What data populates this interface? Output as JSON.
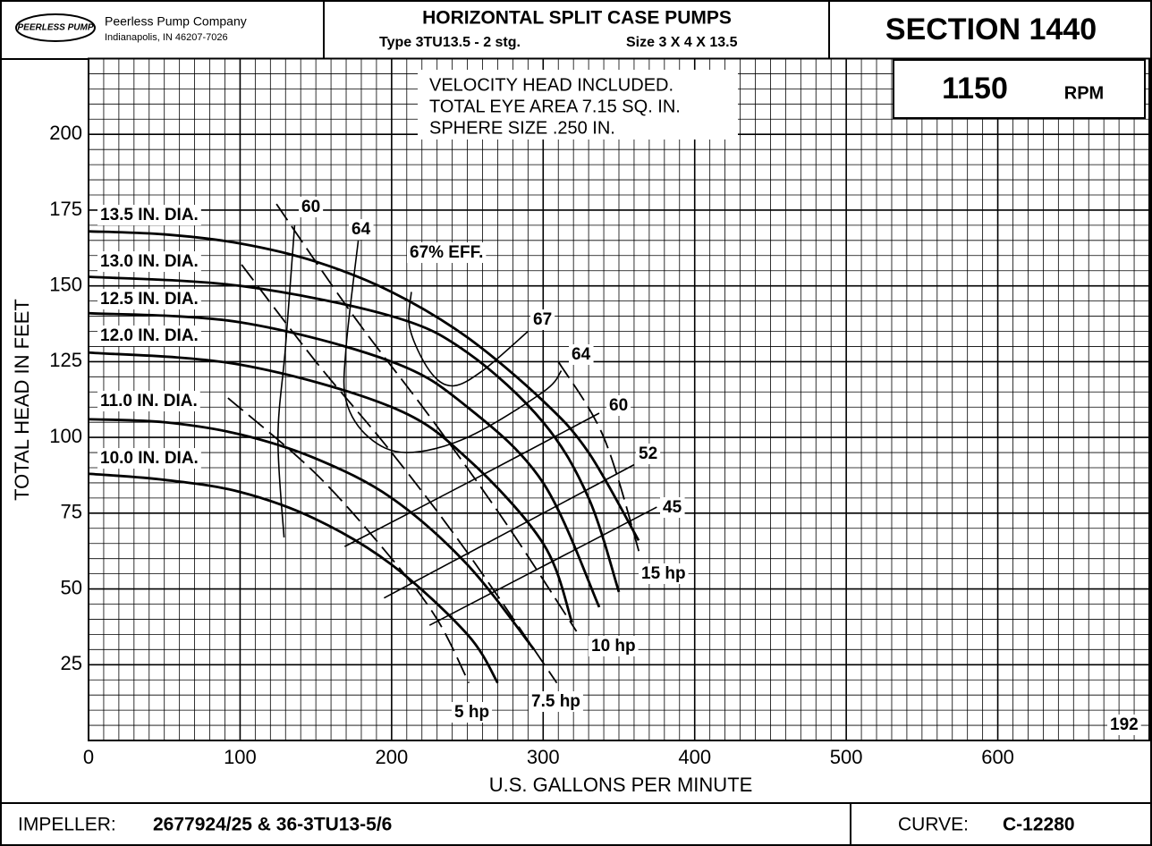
{
  "header": {
    "logo": "PEERLESS PUMP",
    "company": "Peerless Pump Company",
    "address": "Indianapolis, IN 46207-7026",
    "title": "HORIZONTAL SPLIT CASE PUMPS",
    "type": "Type  3TU13.5 - 2 stg.",
    "size": "Size  3 X 4 X 13.5",
    "section": "SECTION 1440",
    "rpm_value": "1150",
    "rpm_unit": "RPM"
  },
  "footer": {
    "impeller_label": "IMPELLER:",
    "impeller": "2677924/25 & 36-3TU13-5/6",
    "curve_label": "CURVE:",
    "curve": "C-12280"
  },
  "chart_data": {
    "type": "line",
    "xlabel": "U.S. GALLONS PER MINUTE",
    "ylabel": "TOTAL HEAD IN FEET",
    "notes": [
      "VELOCITY HEAD INCLUDED.",
      "TOTAL EYE AREA 7.15 SQ. IN.",
      "SPHERE SIZE .250 IN."
    ],
    "xlim": [
      0,
      700
    ],
    "ylim": [
      0,
      225
    ],
    "xticks": [
      0,
      100,
      200,
      300,
      400,
      500,
      600
    ],
    "yticks": [
      25,
      50,
      75,
      100,
      125,
      150,
      175,
      200
    ],
    "grid": true,
    "minor_grid_step": [
      10,
      5
    ],
    "series": [
      {
        "name": "13.5 IN. DIA.",
        "color": "#000",
        "line_width": 2.8,
        "x": [
          0,
          50,
          100,
          150,
          200,
          250,
          300,
          330,
          363
        ],
        "values": [
          168,
          167,
          164,
          158,
          148,
          133,
          112,
          95,
          66
        ]
      },
      {
        "name": "13.0 IN. DIA.",
        "color": "#000",
        "line_width": 2.8,
        "x": [
          0,
          100,
          200,
          250,
          300,
          330,
          350
        ],
        "values": [
          153,
          150,
          140,
          128,
          105,
          80,
          49
        ]
      },
      {
        "name": "12.5 IN. DIA.",
        "color": "#000",
        "line_width": 2.8,
        "x": [
          0,
          100,
          200,
          250,
          300,
          337
        ],
        "values": [
          141,
          138,
          125,
          110,
          85,
          44
        ]
      },
      {
        "name": "12.0 IN. DIA.",
        "color": "#000",
        "line_width": 2.8,
        "x": [
          0,
          100,
          200,
          250,
          300,
          319
        ],
        "values": [
          128,
          124,
          110,
          93,
          65,
          39
        ]
      },
      {
        "name": "11.0 IN. DIA.",
        "color": "#000",
        "line_width": 2.8,
        "x": [
          0,
          50,
          100,
          150,
          200,
          250,
          294
        ],
        "values": [
          106,
          105,
          101,
          93,
          80,
          58,
          30
        ]
      },
      {
        "name": "10.0 IN. DIA.",
        "color": "#000",
        "line_width": 2.8,
        "x": [
          0,
          50,
          100,
          150,
          200,
          250,
          270
        ],
        "values": [
          88,
          86,
          82,
          73,
          58,
          35,
          19
        ]
      },
      {
        "name": "60",
        "color": "#000",
        "line_width": 1.6,
        "x": [
          136,
          130,
          125,
          129,
          null,
          169,
          250,
          337
        ],
        "values": [
          170,
          130,
          100,
          67,
          null,
          64,
          85,
          108
        ]
      },
      {
        "name": "64",
        "color": "#000",
        "line_width": 1.6,
        "x": [
          178,
          170,
          170,
          185,
          210,
          250,
          300,
          312
        ],
        "values": [
          165,
          130,
          112,
          100,
          95,
          100,
          115,
          122
        ]
      },
      {
        "name": "67% EFF.",
        "color": "#000",
        "line_width": 1.6,
        "x": [
          213,
          212,
          225,
          240,
          260,
          290
        ],
        "values": [
          148,
          136,
          122,
          117,
          122,
          135
        ]
      },
      {
        "name": "52",
        "color": "#000",
        "line_width": 1.6,
        "x": [
          195,
          360
        ],
        "values": [
          47,
          91
        ]
      },
      {
        "name": "45",
        "color": "#000",
        "line_width": 1.6,
        "x": [
          225,
          375
        ],
        "values": [
          38,
          77
        ]
      },
      {
        "name": "15 hp",
        "color": "#000",
        "line_width": 1.8,
        "dashed": true,
        "x": [
          310,
          340,
          364
        ],
        "values": [
          125,
          100,
          61
        ]
      },
      {
        "name": "10 hp",
        "color": "#000",
        "line_width": 1.8,
        "dashed": true,
        "x": [
          124,
          175,
          225,
          275,
          322
        ],
        "values": [
          177,
          140,
          107,
          72,
          36
        ]
      },
      {
        "name": "7.5 hp",
        "color": "#000",
        "line_width": 1.8,
        "dashed": true,
        "x": [
          101,
          150,
          200,
          250,
          309
        ],
        "values": [
          157,
          125,
          95,
          62,
          19
        ]
      },
      {
        "name": "5 hp",
        "color": "#000",
        "line_width": 1.8,
        "dashed": true,
        "x": [
          92,
          150,
          200,
          230,
          251
        ],
        "values": [
          113,
          88,
          60,
          40,
          19
        ]
      }
    ],
    "annotations": [
      "60",
      "64",
      "67",
      "192"
    ]
  }
}
